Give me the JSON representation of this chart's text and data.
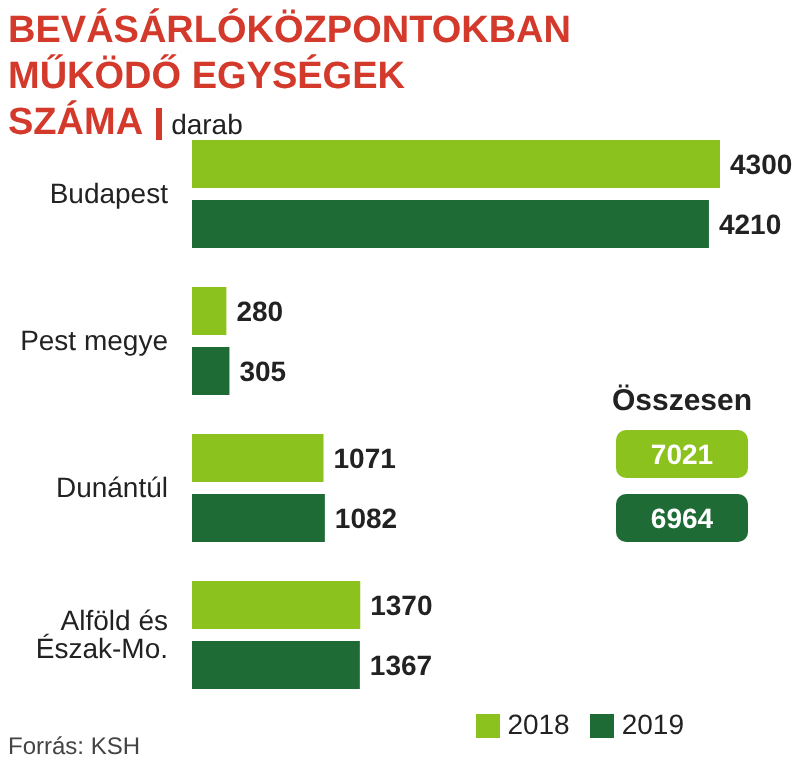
{
  "chart_data": {
    "type": "bar",
    "orientation": "horizontal",
    "title": "BEVÁSÁRLÓKÖZPONTOKBAN MŰKÖDŐ EGYSÉGEK SZÁMA",
    "subtitle": "darab",
    "categories": [
      "Budapest",
      "Pest megye",
      "Dunántúl",
      "Alföld és Észak-Mo."
    ],
    "series": [
      {
        "name": "2018",
        "color": "#8cc21e",
        "values": [
          4300,
          280,
          1071,
          1370
        ]
      },
      {
        "name": "2019",
        "color": "#1e6b35",
        "values": [
          4210,
          305,
          1082,
          1367
        ]
      }
    ],
    "data_labels": true,
    "legend": "bottom right",
    "annotations": [
      "Összesen",
      "7021",
      "6964",
      "Forrás: KSH"
    ]
  }
}
